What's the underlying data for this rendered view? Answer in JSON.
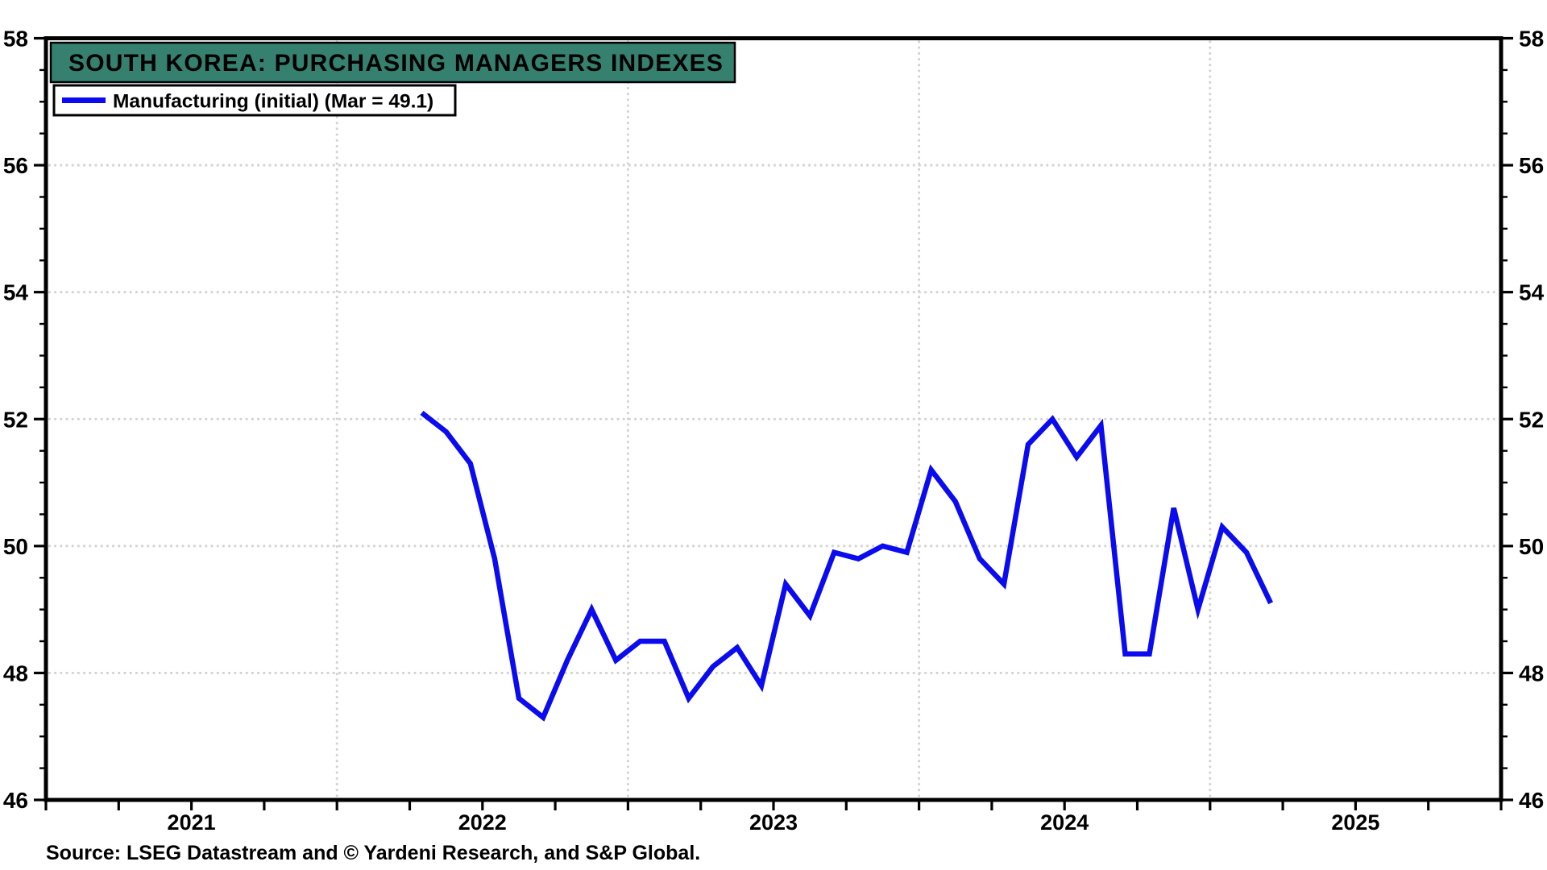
{
  "title": {
    "text": "SOUTH KOREA: PURCHASING MANAGERS INDEXES"
  },
  "legend": {
    "label": "Manufacturing (initial) (Mar = 49.1)"
  },
  "source": {
    "text": "Source: LSEG Datastream and © Yardeni Research, and S&P Global."
  },
  "colors": {
    "line": "#0b0bf0",
    "title_bg": "#35806f",
    "title_text": "#ffffff",
    "grid": "#d2d2d2",
    "axis": "#000000",
    "background": "#ffffff"
  },
  "chart_data": {
    "type": "line",
    "title": "SOUTH KOREA: PURCHASING MANAGERS INDEXES",
    "legend_entries": [
      "Manufacturing (initial) (Mar = 49.1)"
    ],
    "x_axis": {
      "start_year": 2021,
      "end_year": 2025,
      "year_labels": [
        "2021",
        "2022",
        "2023",
        "2024",
        "2025"
      ],
      "tick_interval_months": 3
    },
    "y_axis": {
      "min": 46,
      "max": 58,
      "major_step": 2,
      "minor_step": 0.5,
      "labels": [
        "58",
        "56",
        "54",
        "52",
        "50",
        "48",
        "46"
      ],
      "both_sides": true
    },
    "grid": {
      "horizontal_values": [
        48,
        50,
        52,
        54,
        56
      ],
      "vertical_year_boundaries": [
        2022,
        2023,
        2024,
        2025
      ],
      "style": "dotted"
    },
    "series": [
      {
        "name": "Manufacturing (initial)",
        "last_point_label": "Mar = 49.1",
        "points": [
          {
            "d": "2022-04",
            "v": 52.1
          },
          {
            "d": "2022-05",
            "v": 51.8
          },
          {
            "d": "2022-06",
            "v": 51.3
          },
          {
            "d": "2022-07",
            "v": 49.8
          },
          {
            "d": "2022-08",
            "v": 47.6
          },
          {
            "d": "2022-09",
            "v": 47.3
          },
          {
            "d": "2022-10",
            "v": 48.2
          },
          {
            "d": "2022-11",
            "v": 49.0
          },
          {
            "d": "2022-12",
            "v": 48.2
          },
          {
            "d": "2023-01",
            "v": 48.5
          },
          {
            "d": "2023-02",
            "v": 48.5
          },
          {
            "d": "2023-03",
            "v": 47.6
          },
          {
            "d": "2023-04",
            "v": 48.1
          },
          {
            "d": "2023-05",
            "v": 48.4
          },
          {
            "d": "2023-06",
            "v": 47.8
          },
          {
            "d": "2023-07",
            "v": 49.4
          },
          {
            "d": "2023-08",
            "v": 48.9
          },
          {
            "d": "2023-09",
            "v": 49.9
          },
          {
            "d": "2023-10",
            "v": 49.8
          },
          {
            "d": "2023-11",
            "v": 50.0
          },
          {
            "d": "2023-12",
            "v": 49.9
          },
          {
            "d": "2024-01",
            "v": 51.2
          },
          {
            "d": "2024-02",
            "v": 50.7
          },
          {
            "d": "2024-03",
            "v": 49.8
          },
          {
            "d": "2024-04",
            "v": 49.4
          },
          {
            "d": "2024-05",
            "v": 51.6
          },
          {
            "d": "2024-06",
            "v": 52.0
          },
          {
            "d": "2024-07",
            "v": 51.4
          },
          {
            "d": "2024-08",
            "v": 51.9
          },
          {
            "d": "2024-09",
            "v": 48.3
          },
          {
            "d": "2024-10",
            "v": 48.3
          },
          {
            "d": "2024-11",
            "v": 50.6
          },
          {
            "d": "2024-12",
            "v": 49.0
          },
          {
            "d": "2025-01",
            "v": 50.3
          },
          {
            "d": "2025-02",
            "v": 49.9
          },
          {
            "d": "2025-03",
            "v": 49.1
          }
        ]
      }
    ]
  }
}
